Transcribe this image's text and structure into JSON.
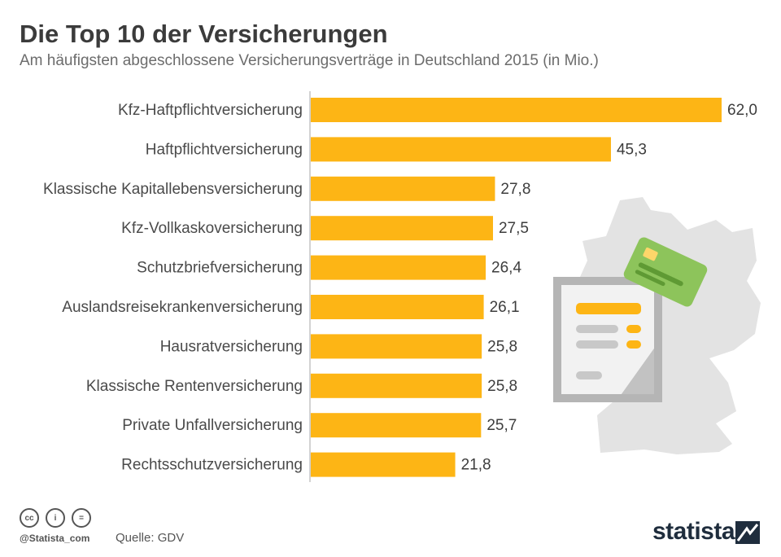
{
  "header": {
    "title": "Die Top 10 der Versicherungen",
    "subtitle": "Am häufigsten abgeschlossene Versicherungsverträge in Deutschland 2015 (in Mio.)"
  },
  "chart_data": {
    "type": "bar",
    "orientation": "horizontal",
    "title": "Die Top 10 der Versicherungen",
    "subtitle": "Am häufigsten abgeschlossene Versicherungsverträge in Deutschland 2015 (in Mio.)",
    "xlabel": "",
    "ylabel": "",
    "unit": "Mio.",
    "categories": [
      "Kfz-Haftpflichtversicherung",
      "Haftpflichtversicherung",
      "Klassische Kapitallebensversicherung",
      "Kfz-Vollkaskoversicherung",
      "Schutzbriefversicherung",
      "Auslandsreisekrankenversicherung",
      "Hausratversicherung",
      "Klassische Rentenversicherung",
      "Private Unfallversicherung",
      "Rechtsschutzversicherung"
    ],
    "values": [
      62.0,
      45.3,
      27.8,
      27.5,
      26.4,
      26.1,
      25.8,
      25.8,
      25.7,
      21.8
    ],
    "value_labels": [
      "62,0",
      "45,3",
      "27,8",
      "27,5",
      "26,4",
      "26,1",
      "25,8",
      "25,8",
      "25,7",
      "21,8"
    ],
    "xlim": [
      0,
      62
    ],
    "grid": false,
    "bar_color": "#FDB515"
  },
  "footer": {
    "handle": "@Statista_com",
    "source": "Quelle: GDV",
    "brand": "statista",
    "license_icons": [
      "cc-icon",
      "by-icon",
      "nd-icon"
    ],
    "license_glyphs": [
      "cc",
      "i",
      "="
    ]
  },
  "colors": {
    "bar": "#FDB515",
    "map": "#E3E3E3",
    "document": "#F2F2F2",
    "card": "#8DC45B",
    "brand": "#1F2D3D"
  }
}
